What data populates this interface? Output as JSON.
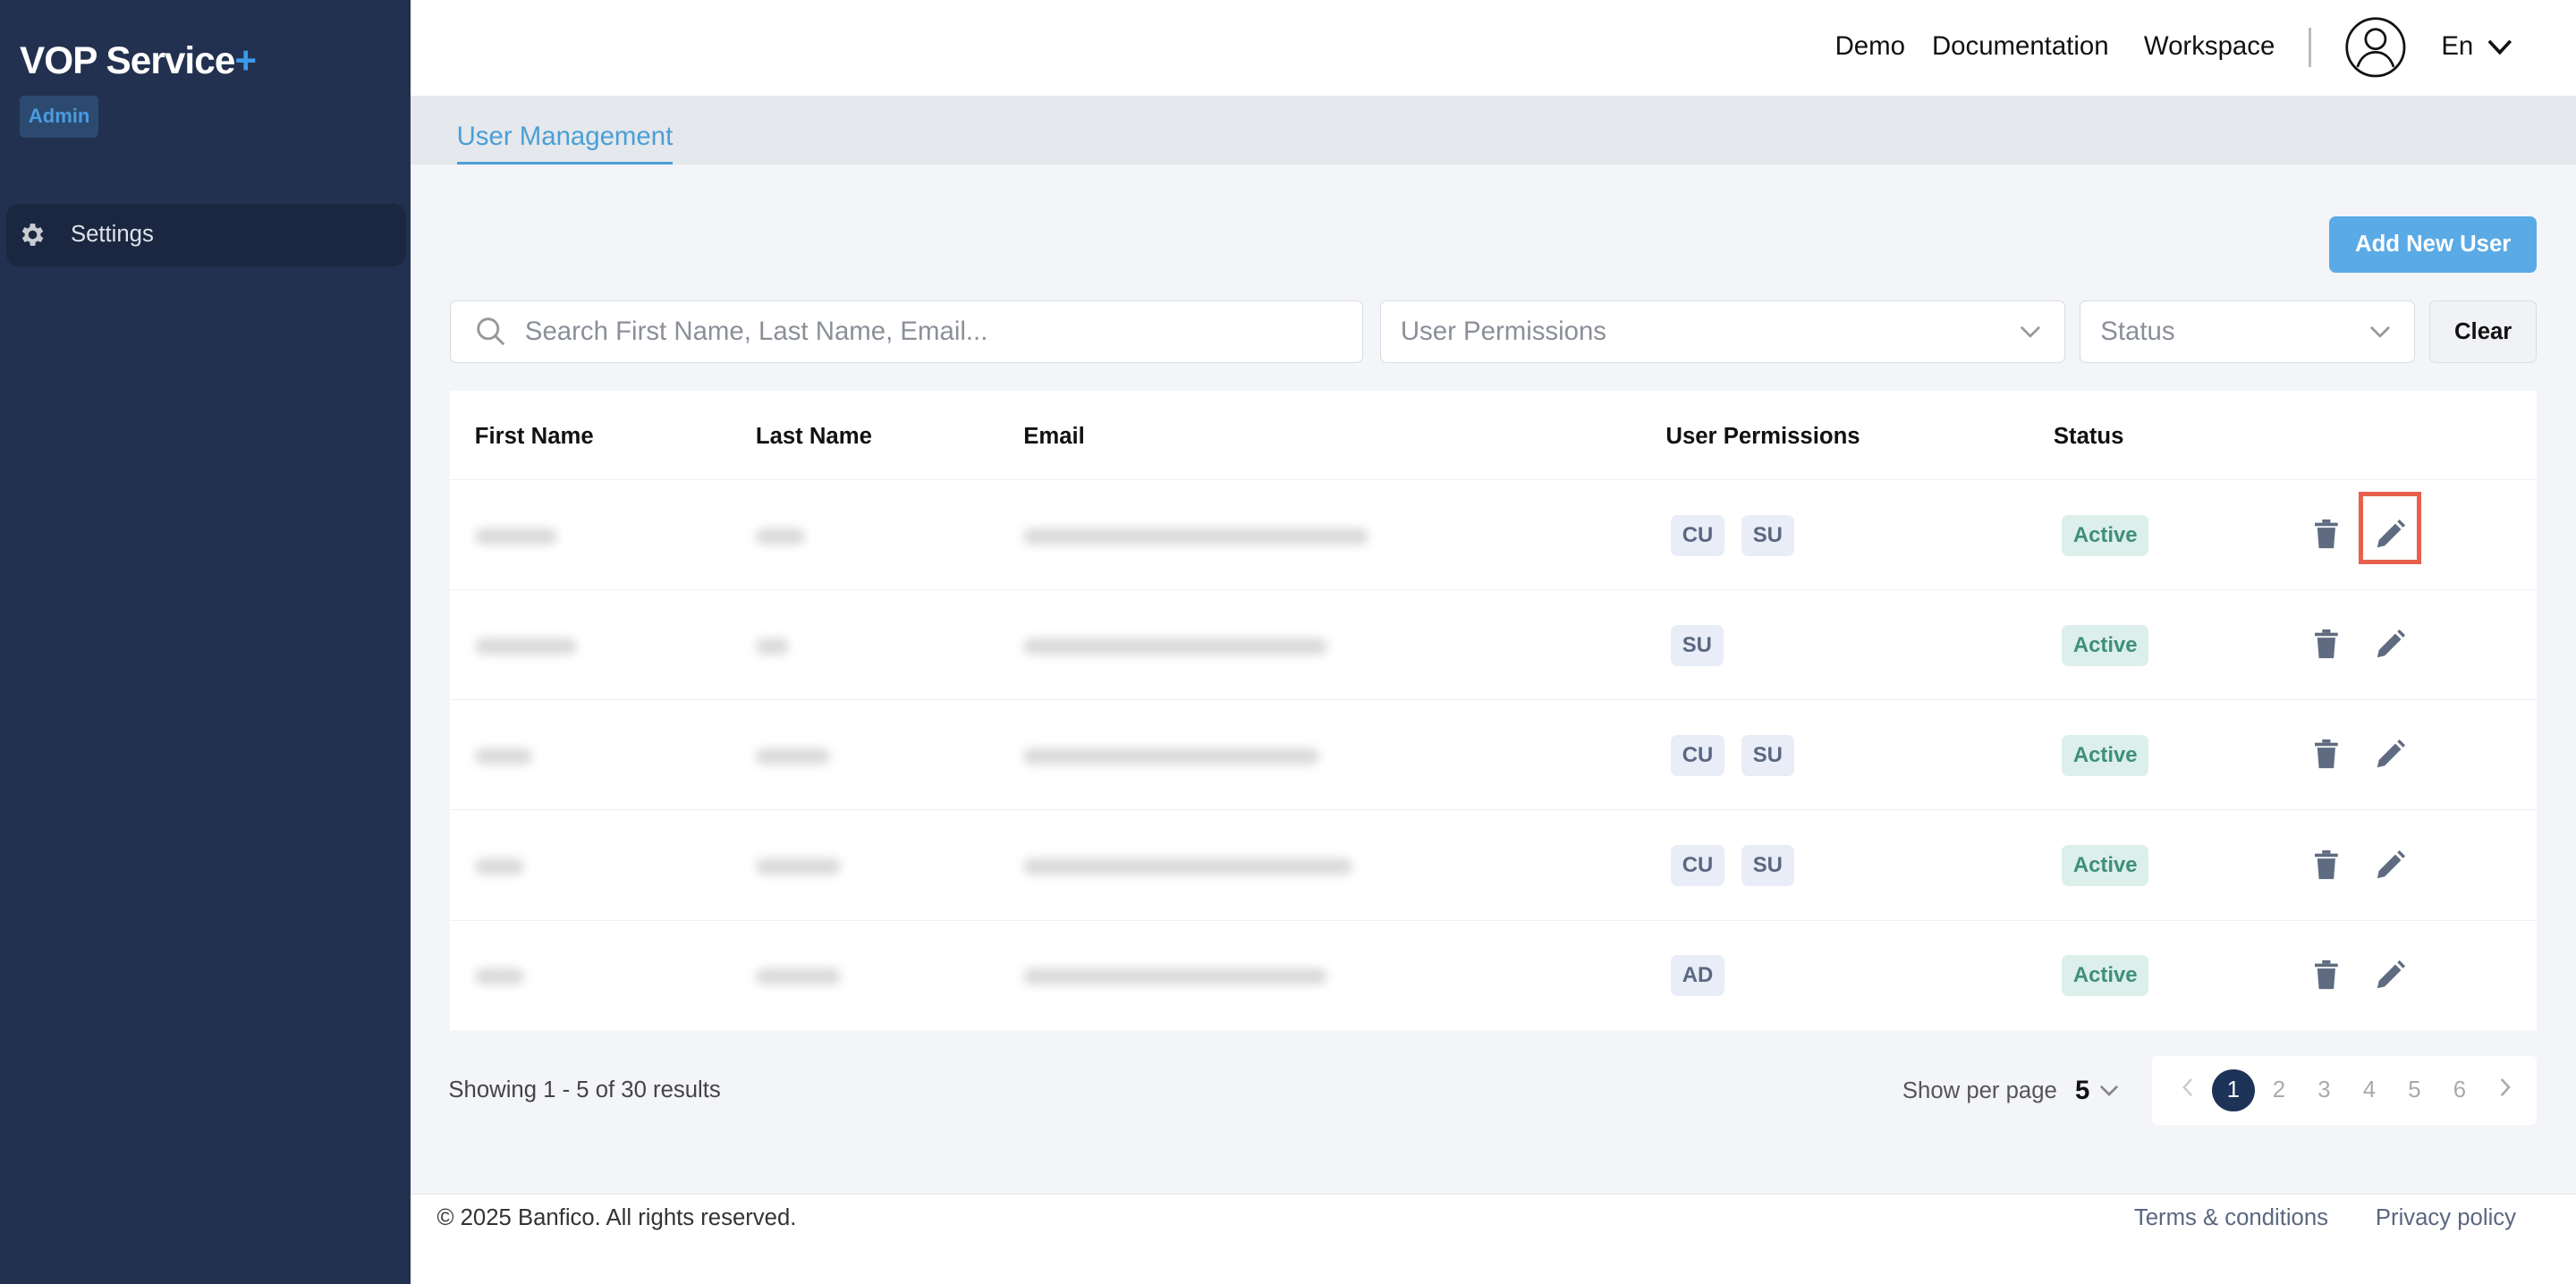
{
  "sidebar": {
    "logo_text": "VOP Service",
    "logo_plus": "+",
    "role_badge": "Admin",
    "items": [
      {
        "label": "Settings",
        "icon": "gear-icon"
      }
    ]
  },
  "header": {
    "links": [
      "Demo",
      "Documentation",
      "Workspace"
    ],
    "avatar_icon": "user-circle-icon",
    "language": "En"
  },
  "tabs": [
    {
      "label": "User Management",
      "active": true
    }
  ],
  "toolbar": {
    "add_user_label": "Add New User"
  },
  "filters": {
    "search_placeholder": "Search First Name, Last Name, Email...",
    "permissions_placeholder": "User Permissions",
    "status_placeholder": "Status",
    "clear_label": "Clear"
  },
  "table": {
    "columns": [
      "First Name",
      "Last Name",
      "Email",
      "User Permissions",
      "Status"
    ],
    "rows": [
      {
        "permissions": [
          "CU",
          "SU"
        ],
        "status": "Active"
      },
      {
        "permissions": [
          "SU"
        ],
        "status": "Active"
      },
      {
        "permissions": [
          "CU",
          "SU"
        ],
        "status": "Active"
      },
      {
        "permissions": [
          "CU",
          "SU"
        ],
        "status": "Active"
      },
      {
        "permissions": [
          "AD"
        ],
        "status": "Active"
      }
    ]
  },
  "pagination": {
    "summary": "Showing 1 - 5 of 30 results",
    "per_page_label": "Show per page",
    "per_page_value": "5",
    "pages": [
      "1",
      "2",
      "3",
      "4",
      "5",
      "6"
    ],
    "current_page": 1
  },
  "footer": {
    "copyright": "© 2025 Banfico. All rights reserved.",
    "terms": "Terms & conditions",
    "privacy": "Privacy policy"
  },
  "colors": {
    "sidebar_bg": "#22314f",
    "accent": "#5aaae6",
    "status_active": "#3f8f78",
    "highlight": "#e8604c"
  }
}
